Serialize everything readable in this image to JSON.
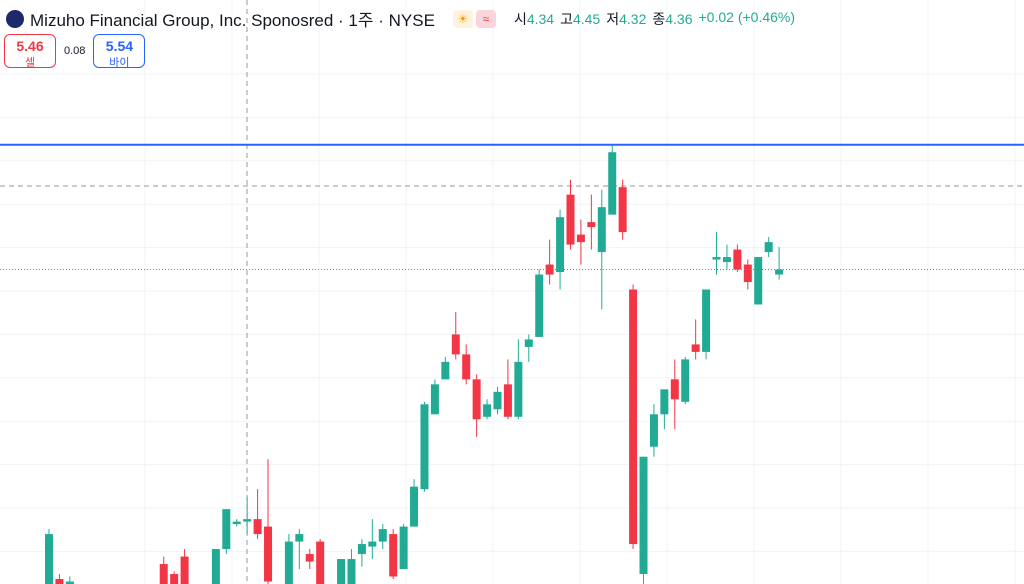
{
  "header": {
    "title": "Mizuho Financial Group, Inc. Sponosred · 1주 · NYSE",
    "ohlc_labels": [
      "시",
      "고",
      "저",
      "종"
    ],
    "change": "+0.02 (+0.46%)",
    "sell_price": 5.46,
    "sell_label": "셀",
    "spread": 0.08,
    "buy_price": 5.54,
    "buy_label": "바이"
  },
  "chart_data": {
    "type": "candlestick",
    "up_color": "#22ab94",
    "down_color": "#f23645",
    "ylim": [
      3.1,
      5.44
    ],
    "horizontal_line": 4.86,
    "horizontal_line_color": "#2962ff",
    "grid": true,
    "open": [
      3.1,
      3.12,
      3.1,
      null,
      null,
      null,
      null,
      null,
      null,
      null,
      null,
      3.18,
      3.14,
      3.21,
      null,
      null,
      3.1,
      3.24,
      3.34,
      3.35,
      3.36,
      3.33,
      null,
      3.1,
      3.27,
      3.22,
      3.27,
      null,
      3.1,
      3.1,
      3.22,
      3.25,
      3.27,
      3.3,
      3.16,
      3.33,
      3.48,
      3.78,
      3.92,
      4.1,
      4.02,
      3.92,
      3.77,
      3.8,
      3.9,
      3.77,
      4.05,
      4.09,
      4.38,
      4.35,
      4.66,
      4.5,
      4.55,
      4.43,
      4.58,
      4.69,
      4.28,
      3.14,
      3.65,
      3.78,
      3.92,
      3.83,
      4.06,
      4.03,
      4.4,
      4.39,
      4.44,
      4.38,
      4.22,
      4.43,
      4.34
    ],
    "high": [
      3.32,
      3.14,
      3.13,
      null,
      null,
      null,
      null,
      null,
      null,
      null,
      null,
      3.21,
      3.15,
      3.24,
      null,
      null,
      3.24,
      3.4,
      3.36,
      3.45,
      3.48,
      3.6,
      null,
      3.3,
      3.32,
      3.24,
      3.28,
      null,
      3.2,
      3.24,
      3.28,
      3.36,
      3.34,
      3.32,
      3.34,
      3.52,
      3.83,
      3.92,
      4.01,
      4.19,
      4.06,
      3.94,
      3.84,
      3.89,
      4.0,
      4.08,
      4.1,
      4.36,
      4.48,
      4.6,
      4.72,
      4.56,
      4.66,
      4.68,
      4.86,
      4.72,
      4.3,
      3.61,
      3.82,
      3.88,
      4.0,
      4.01,
      4.16,
      4.28,
      4.51,
      4.46,
      4.46,
      4.4,
      4.41,
      4.49,
      4.45
    ],
    "low": [
      3.05,
      3.05,
      3.05,
      null,
      null,
      null,
      null,
      null,
      null,
      null,
      null,
      3.05,
      3.05,
      3.05,
      null,
      null,
      3.05,
      3.22,
      3.33,
      3.3,
      3.28,
      3.05,
      null,
      3.05,
      3.16,
      3.16,
      3.05,
      null,
      3.05,
      3.05,
      3.17,
      3.2,
      3.24,
      3.12,
      3.16,
      3.33,
      3.47,
      3.78,
      3.92,
      4.0,
      3.9,
      3.69,
      3.76,
      3.78,
      3.76,
      3.76,
      3.99,
      4.09,
      4.3,
      4.28,
      4.44,
      4.38,
      4.44,
      4.2,
      4.58,
      4.48,
      3.24,
      3.05,
      3.61,
      3.72,
      3.72,
      3.82,
      4.0,
      4.0,
      4.34,
      4.36,
      4.35,
      4.28,
      4.22,
      4.41,
      4.32
    ],
    "close": [
      3.3,
      3.1,
      3.11,
      null,
      null,
      null,
      null,
      null,
      null,
      null,
      null,
      3.1,
      3.1,
      3.1,
      null,
      null,
      3.24,
      3.4,
      3.35,
      3.36,
      3.3,
      3.11,
      null,
      3.27,
      3.3,
      3.19,
      3.1,
      null,
      3.2,
      3.2,
      3.26,
      3.27,
      3.32,
      3.13,
      3.33,
      3.49,
      3.82,
      3.9,
      3.99,
      4.02,
      3.92,
      3.76,
      3.82,
      3.87,
      3.77,
      3.99,
      4.08,
      4.34,
      4.34,
      4.57,
      4.46,
      4.47,
      4.53,
      4.61,
      4.83,
      4.51,
      3.26,
      3.61,
      3.78,
      3.88,
      3.84,
      4.0,
      4.03,
      4.28,
      4.41,
      4.41,
      4.36,
      4.31,
      4.41,
      4.47,
      4.36
    ]
  }
}
